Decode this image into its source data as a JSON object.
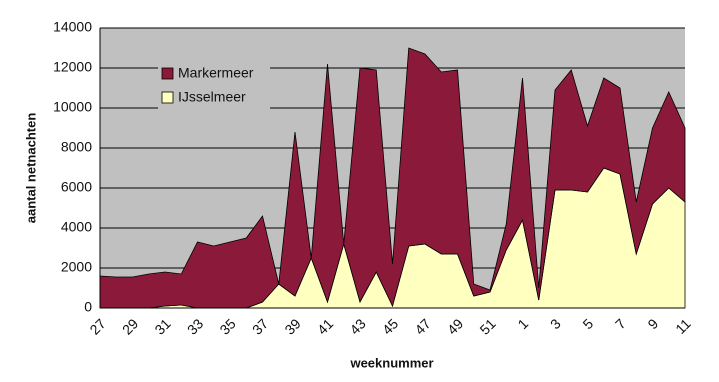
{
  "chart_data": {
    "type": "stacked-area",
    "x_label": "weeknummer",
    "y_label": "aantal netnachten",
    "categories": [
      "27",
      null,
      "29",
      null,
      "31",
      null,
      "33",
      null,
      "35",
      null,
      "37",
      null,
      "39",
      null,
      "41",
      null,
      "43",
      null,
      "45",
      null,
      "47",
      null,
      "49",
      null,
      "51",
      null,
      "1",
      null,
      "3",
      null,
      "5",
      null,
      "7",
      null,
      "9",
      null,
      "11"
    ],
    "series": [
      {
        "name": "Markermeer",
        "color": "#8b1a3a",
        "values": [
          1600,
          1550,
          1550,
          1700,
          1700,
          1550,
          3300,
          3100,
          3300,
          3500,
          4300,
          0,
          8200,
          0,
          11900,
          0,
          11700,
          10100,
          2100,
          9900,
          9500,
          9100,
          9200,
          600,
          100,
          1300,
          7100,
          600,
          5000,
          6000,
          3300,
          4500,
          4300,
          2600,
          3800,
          4800,
          3700
        ]
      },
      {
        "name": "IJsselmeer",
        "color": "#ffffc0",
        "values": [
          0,
          0,
          0,
          0,
          100,
          150,
          0,
          0,
          0,
          0,
          300,
          1200,
          600,
          2500,
          300,
          3200,
          300,
          1800,
          100,
          3100,
          3200,
          2700,
          2700,
          600,
          800,
          2900,
          4400,
          400,
          5900,
          5900,
          5800,
          7000,
          6700,
          2700,
          5200,
          6000,
          5300
        ]
      }
    ],
    "ylim": [
      0,
      14000
    ],
    "yticks": [
      0,
      2000,
      4000,
      6000,
      8000,
      10000,
      12000,
      14000
    ],
    "grid": true,
    "legend": "upper-left"
  }
}
